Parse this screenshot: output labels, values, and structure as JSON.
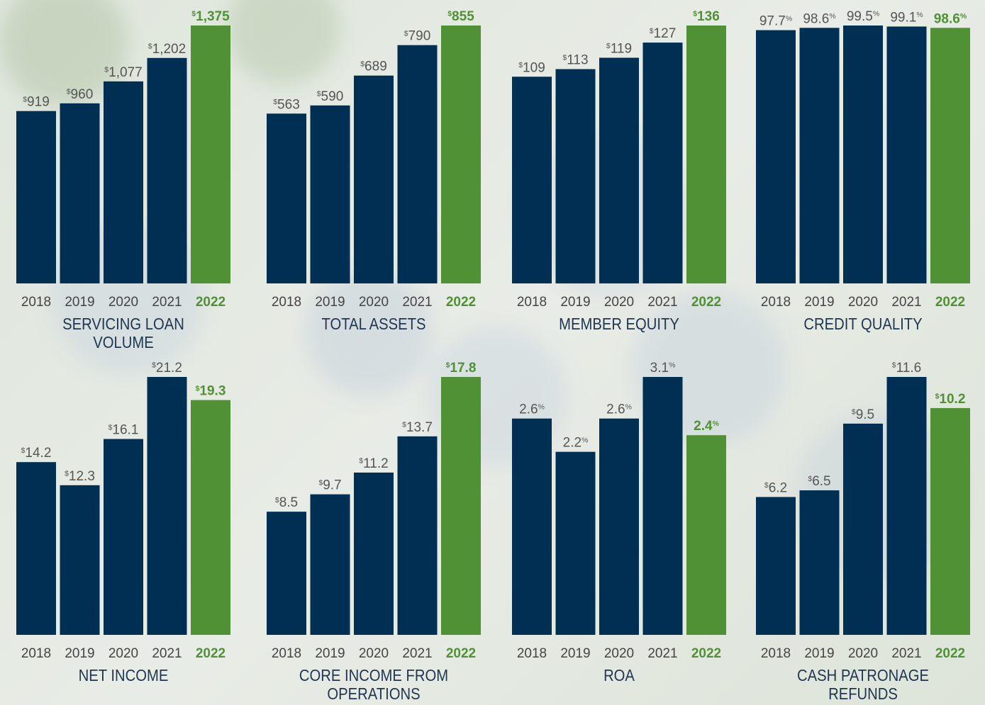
{
  "chart_data": [
    {
      "type": "bar",
      "title": "SERVICING LOAN VOLUME",
      "categories": [
        "2018",
        "2019",
        "2020",
        "2021",
        "2022"
      ],
      "values": [
        919,
        960,
        1077,
        1202,
        1375
      ],
      "value_labels": [
        "$919",
        "$960",
        "$1,077",
        "$1,202",
        "$1,375"
      ],
      "colors": [
        "#002f54",
        "#002f54",
        "#002f54",
        "#002f54",
        "#4f9134"
      ]
    },
    {
      "type": "bar",
      "title": "TOTAL ASSETS",
      "categories": [
        "2018",
        "2019",
        "2020",
        "2021",
        "2022"
      ],
      "values": [
        563,
        590,
        689,
        790,
        855
      ],
      "value_labels": [
        "$563",
        "$590",
        "$689",
        "$790",
        "$855"
      ],
      "colors": [
        "#002f54",
        "#002f54",
        "#002f54",
        "#002f54",
        "#4f9134"
      ]
    },
    {
      "type": "bar",
      "title": "MEMBER EQUITY",
      "categories": [
        "2018",
        "2019",
        "2020",
        "2021",
        "2022"
      ],
      "values": [
        109,
        113,
        119,
        127,
        136
      ],
      "value_labels": [
        "$109",
        "$113",
        "$119",
        "$127",
        "$136"
      ],
      "colors": [
        "#002f54",
        "#002f54",
        "#002f54",
        "#002f54",
        "#4f9134"
      ]
    },
    {
      "type": "bar",
      "title": "CREDIT QUALITY",
      "categories": [
        "2018",
        "2019",
        "2020",
        "2021",
        "2022"
      ],
      "values": [
        97.7,
        98.6,
        99.5,
        99.1,
        98.6
      ],
      "value_labels": [
        "97.7%",
        "98.6%",
        "99.5%",
        "99.1%",
        "98.6%"
      ],
      "colors": [
        "#002f54",
        "#002f54",
        "#002f54",
        "#002f54",
        "#4f9134"
      ]
    },
    {
      "type": "bar",
      "title": "NET INCOME",
      "categories": [
        "2018",
        "2019",
        "2020",
        "2021",
        "2022"
      ],
      "values": [
        14.2,
        12.3,
        16.1,
        21.2,
        19.3
      ],
      "value_labels": [
        "$14.2",
        "$12.3",
        "$16.1",
        "$21.2",
        "$19.3"
      ],
      "colors": [
        "#002f54",
        "#002f54",
        "#002f54",
        "#002f54",
        "#4f9134"
      ]
    },
    {
      "type": "bar",
      "title": "CORE INCOME FROM OPERATIONS",
      "categories": [
        "2018",
        "2019",
        "2020",
        "2021",
        "2022"
      ],
      "values": [
        8.5,
        9.7,
        11.2,
        13.7,
        17.8
      ],
      "value_labels": [
        "$8.5",
        "$9.7",
        "$11.2",
        "$13.7",
        "$17.8"
      ],
      "colors": [
        "#002f54",
        "#002f54",
        "#002f54",
        "#002f54",
        "#4f9134"
      ]
    },
    {
      "type": "bar",
      "title": "ROA",
      "categories": [
        "2018",
        "2019",
        "2020",
        "2021",
        "2022"
      ],
      "values": [
        2.6,
        2.2,
        2.6,
        3.1,
        2.4
      ],
      "value_labels": [
        "2.6%",
        "2.2%",
        "2.6%",
        "3.1%",
        "2.4%"
      ],
      "colors": [
        "#002f54",
        "#002f54",
        "#002f54",
        "#002f54",
        "#4f9134"
      ]
    },
    {
      "type": "bar",
      "title": "CASH PATRONAGE REFUNDS",
      "categories": [
        "2018",
        "2019",
        "2020",
        "2021",
        "2022"
      ],
      "values": [
        6.2,
        6.5,
        9.5,
        11.6,
        10.2
      ],
      "value_labels": [
        "$6.2",
        "$6.5",
        "$9.5",
        "$11.6",
        "$10.2"
      ],
      "colors": [
        "#002f54",
        "#002f54",
        "#002f54",
        "#002f54",
        "#4f9134"
      ]
    }
  ]
}
